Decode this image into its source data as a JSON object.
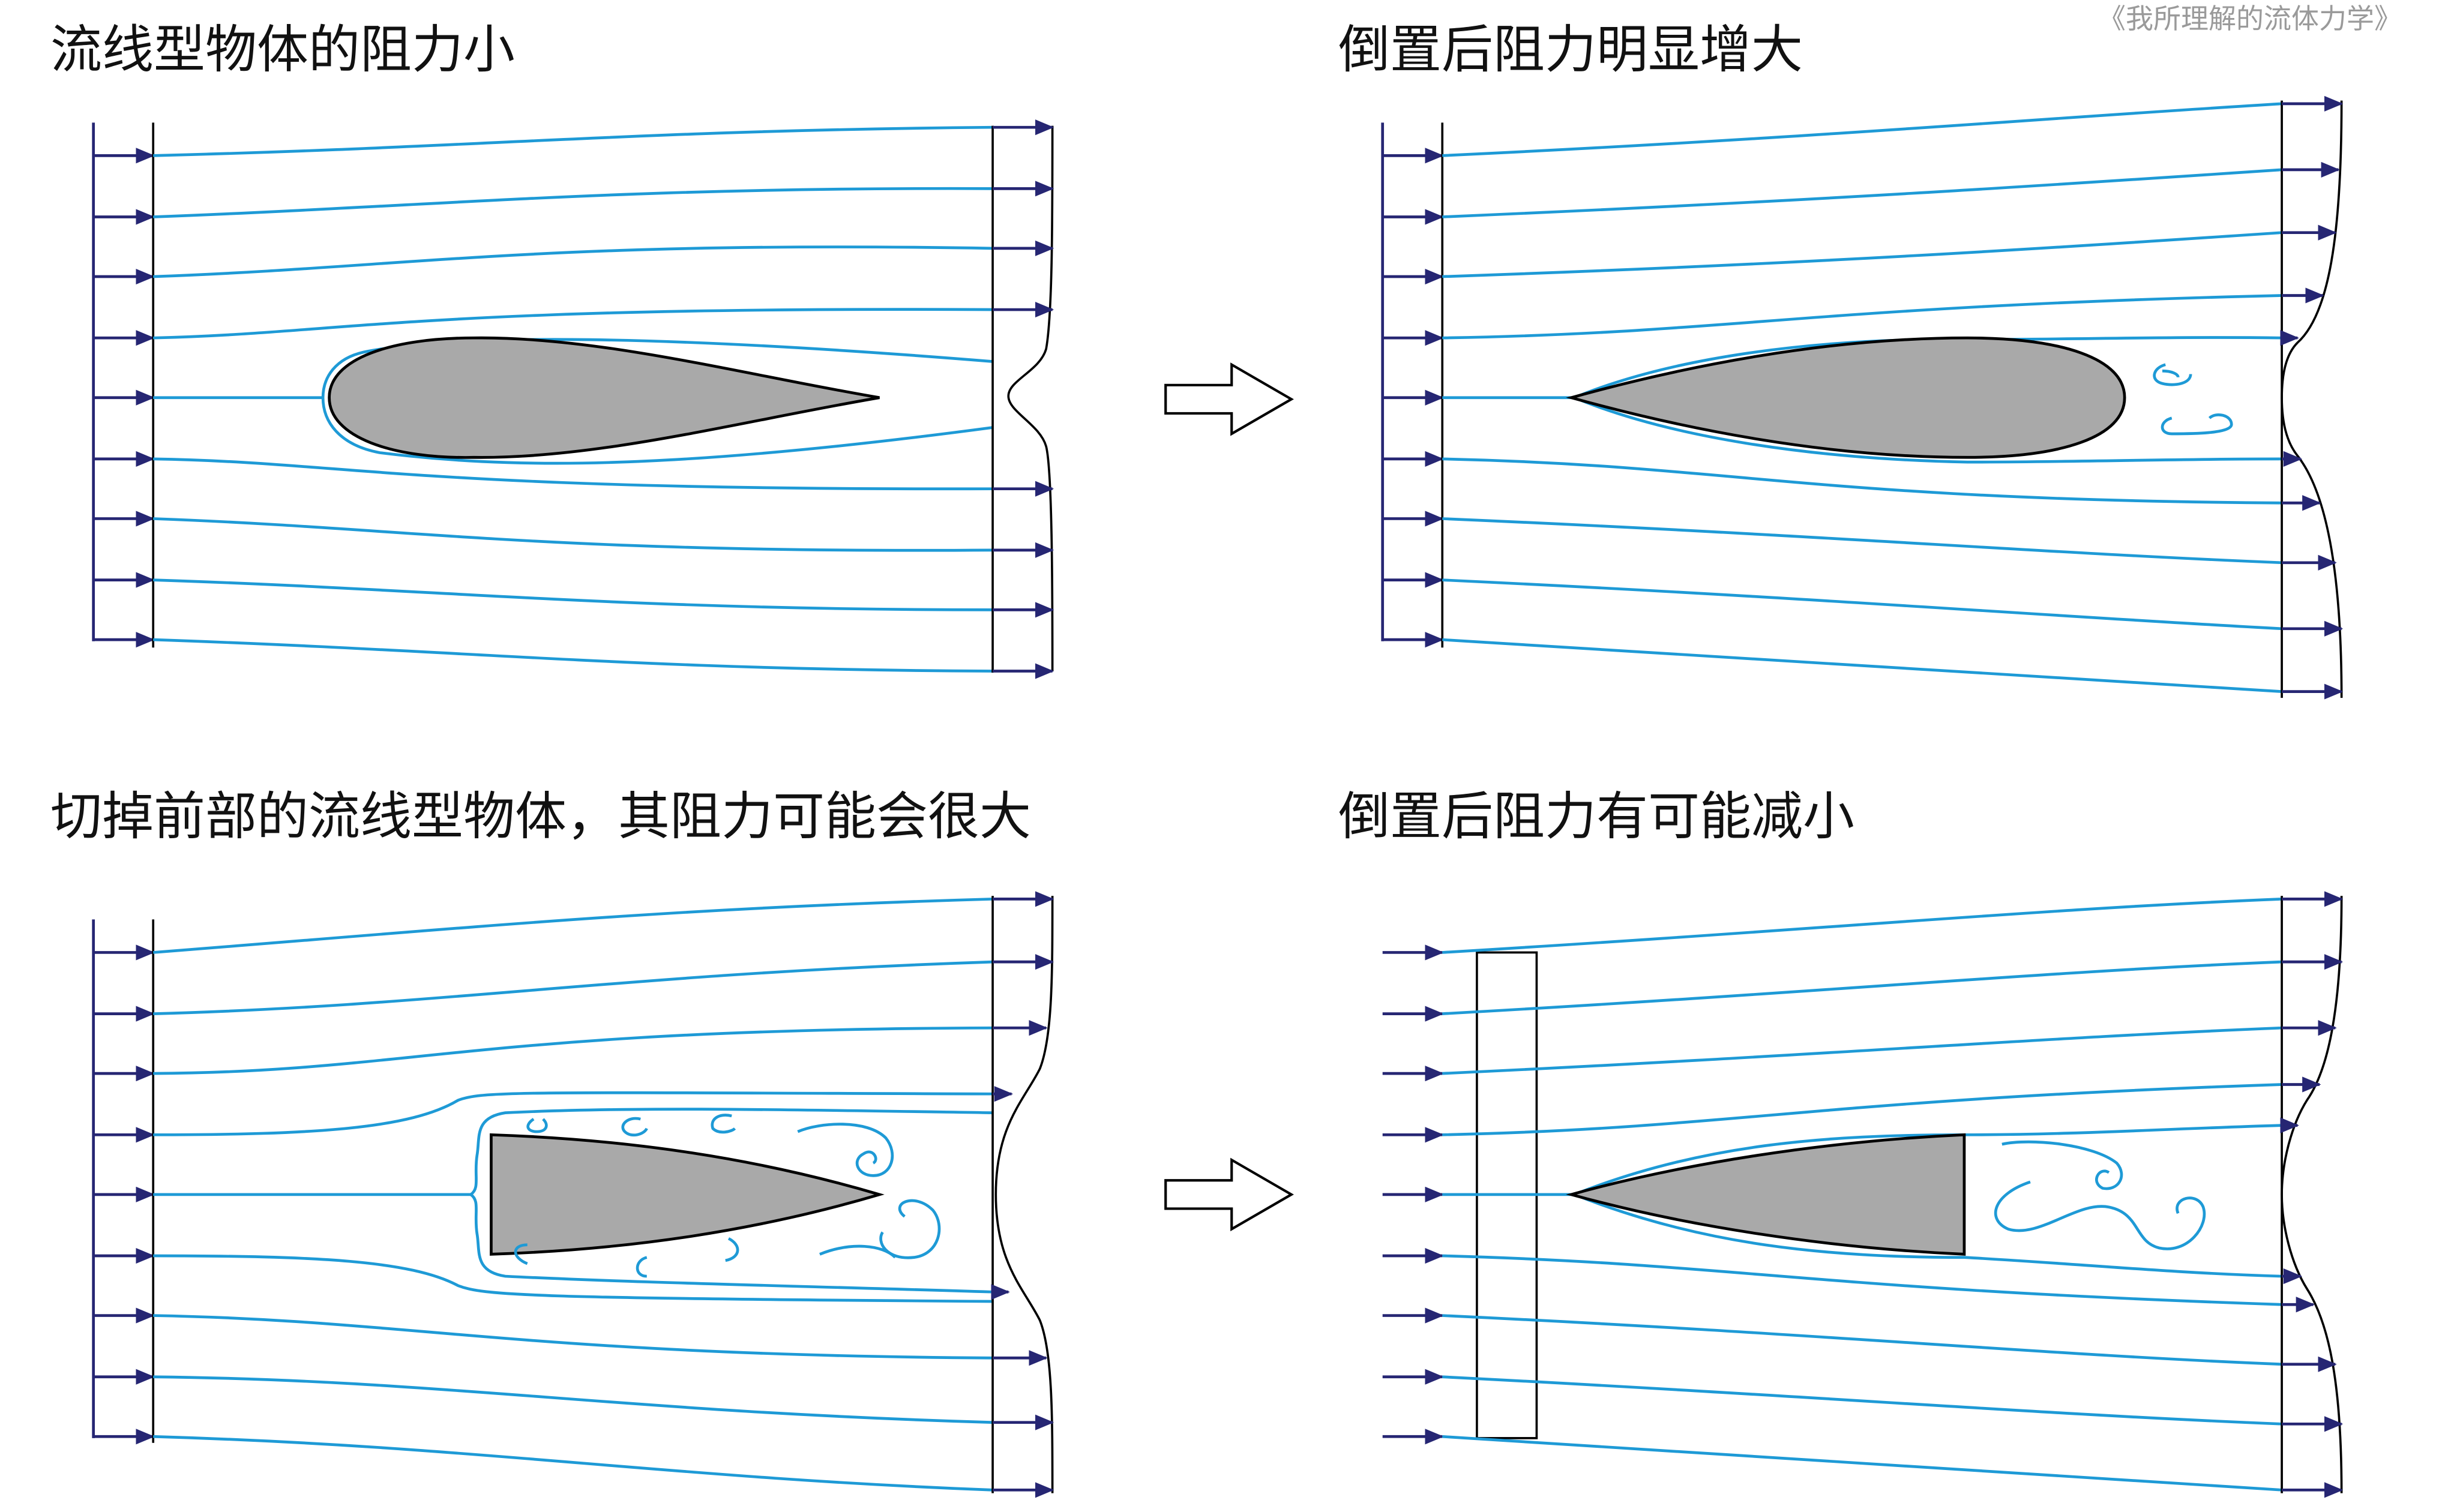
{
  "credit": "《我所理解的流体力学》",
  "panels": [
    {
      "title": "流线型物体的阻力小"
    },
    {
      "title": "倒置后阻力明显增大"
    },
    {
      "title": "切掉前部的流线型物体，其阻力可能会很大"
    },
    {
      "title": "倒置后阻力有可能减小"
    }
  ],
  "colors": {
    "streamline": "#1e9ad6",
    "velocity_arrow": "#262673",
    "body_fill": "#a9a9a9",
    "outline": "#000000"
  }
}
